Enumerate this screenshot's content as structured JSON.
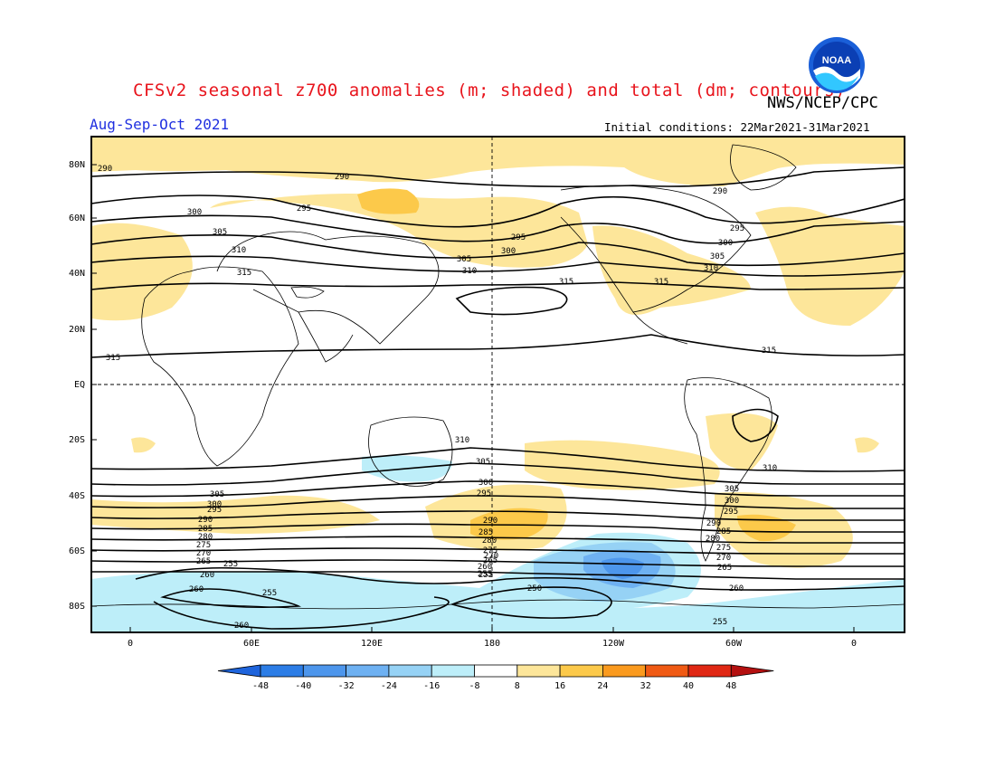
{
  "header": {
    "title": "CFSv2 seasonal z700 anomalies (m; shaded) and total (dm; contours)",
    "organization": "NWS/NCEP/CPC",
    "period": "Aug-Sep-Oct 2021",
    "initial_conditions": "Initial conditions: 22Mar2021-31Mar2021",
    "logo_text": "NOAA"
  },
  "map": {
    "lat_labels": [
      "80N",
      "60N",
      "40N",
      "20N",
      "EQ",
      "20S",
      "40S",
      "60S",
      "80S"
    ],
    "lon_labels": [
      "0",
      "60E",
      "120E",
      "180",
      "120W",
      "60W",
      "0"
    ],
    "contour_labels": [
      "290",
      "290",
      "290",
      "295",
      "295",
      "295",
      "300",
      "300",
      "300",
      "305",
      "305",
      "305",
      "310",
      "310",
      "310",
      "315",
      "315",
      "315",
      "315",
      "315",
      "310",
      "305",
      "300",
      "295",
      "290",
      "285",
      "280",
      "275",
      "270",
      "265",
      "260",
      "255",
      "250",
      "255",
      "260",
      "305",
      "300",
      "295",
      "290",
      "285",
      "280",
      "275",
      "270",
      "265",
      "260",
      "255",
      "255",
      "260",
      "310",
      "305",
      "300",
      "295",
      "290",
      "285",
      "280",
      "275",
      "270",
      "265",
      "260",
      "255"
    ]
  },
  "colorbar": {
    "ticks": [
      "-48",
      "-40",
      "-32",
      "-24",
      "-16",
      "-8",
      "8",
      "16",
      "24",
      "32",
      "40",
      "48"
    ],
    "colors": [
      "#1e64dc",
      "#2c7de6",
      "#4d96ec",
      "#6eb1f2",
      "#96d2f5",
      "#bdeef9",
      "#ffffff",
      "#fde69a",
      "#fcc94a",
      "#fa9a1e",
      "#f05a14",
      "#e02814",
      "#b41010"
    ]
  }
}
